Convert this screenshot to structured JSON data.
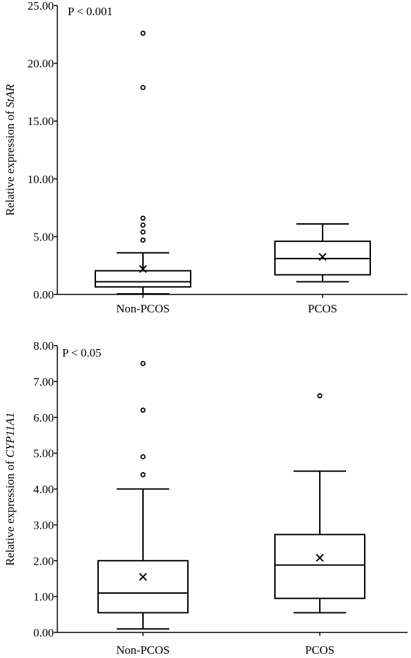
{
  "chart_data": [
    {
      "type": "box",
      "annotation": "P < 0.001",
      "ylabel_prefix": "Relative expression of ",
      "ylabel_gene": "StAR",
      "ylim": [
        0,
        25
      ],
      "yticks": [
        0,
        5,
        10,
        15,
        20,
        25
      ],
      "ytick_labels": [
        "0.00",
        "5.00",
        "10.00",
        "15.00",
        "20.00",
        "25.00"
      ],
      "categories": [
        "Non-PCOS",
        "PCOS"
      ],
      "boxes": [
        {
          "group": "Non-PCOS",
          "whisker_low": 0.05,
          "q1": 0.65,
          "median": 1.1,
          "q3": 2.05,
          "whisker_high": 3.6,
          "mean": 2.2,
          "outliers": [
            4.7,
            5.4,
            6.0,
            6.6,
            17.9,
            22.6
          ]
        },
        {
          "group": "PCOS",
          "whisker_low": 1.1,
          "q1": 1.7,
          "median": 3.1,
          "q3": 4.6,
          "whisker_high": 6.1,
          "mean": 3.25,
          "outliers": []
        }
      ]
    },
    {
      "type": "box",
      "annotation": "P < 0.05",
      "ylabel_prefix": "Relative expression of ",
      "ylabel_gene": "CYP11A1",
      "ylim": [
        0,
        8
      ],
      "yticks": [
        0,
        1,
        2,
        3,
        4,
        5,
        6,
        7,
        8
      ],
      "ytick_labels": [
        "0.00",
        "1.00",
        "2.00",
        "3.00",
        "4.00",
        "5.00",
        "6.00",
        "7.00",
        "8.00"
      ],
      "categories": [
        "Non-PCOS",
        "PCOS"
      ],
      "boxes": [
        {
          "group": "Non-PCOS",
          "whisker_low": 0.1,
          "q1": 0.55,
          "median": 1.1,
          "q3": 2.0,
          "whisker_high": 4.0,
          "mean": 1.55,
          "outliers": [
            4.4,
            4.9,
            6.2,
            7.5
          ]
        },
        {
          "group": "PCOS",
          "whisker_low": 0.55,
          "q1": 0.95,
          "median": 1.88,
          "q3": 2.73,
          "whisker_high": 4.5,
          "mean": 2.08,
          "outliers": [
            6.6
          ]
        }
      ]
    }
  ]
}
